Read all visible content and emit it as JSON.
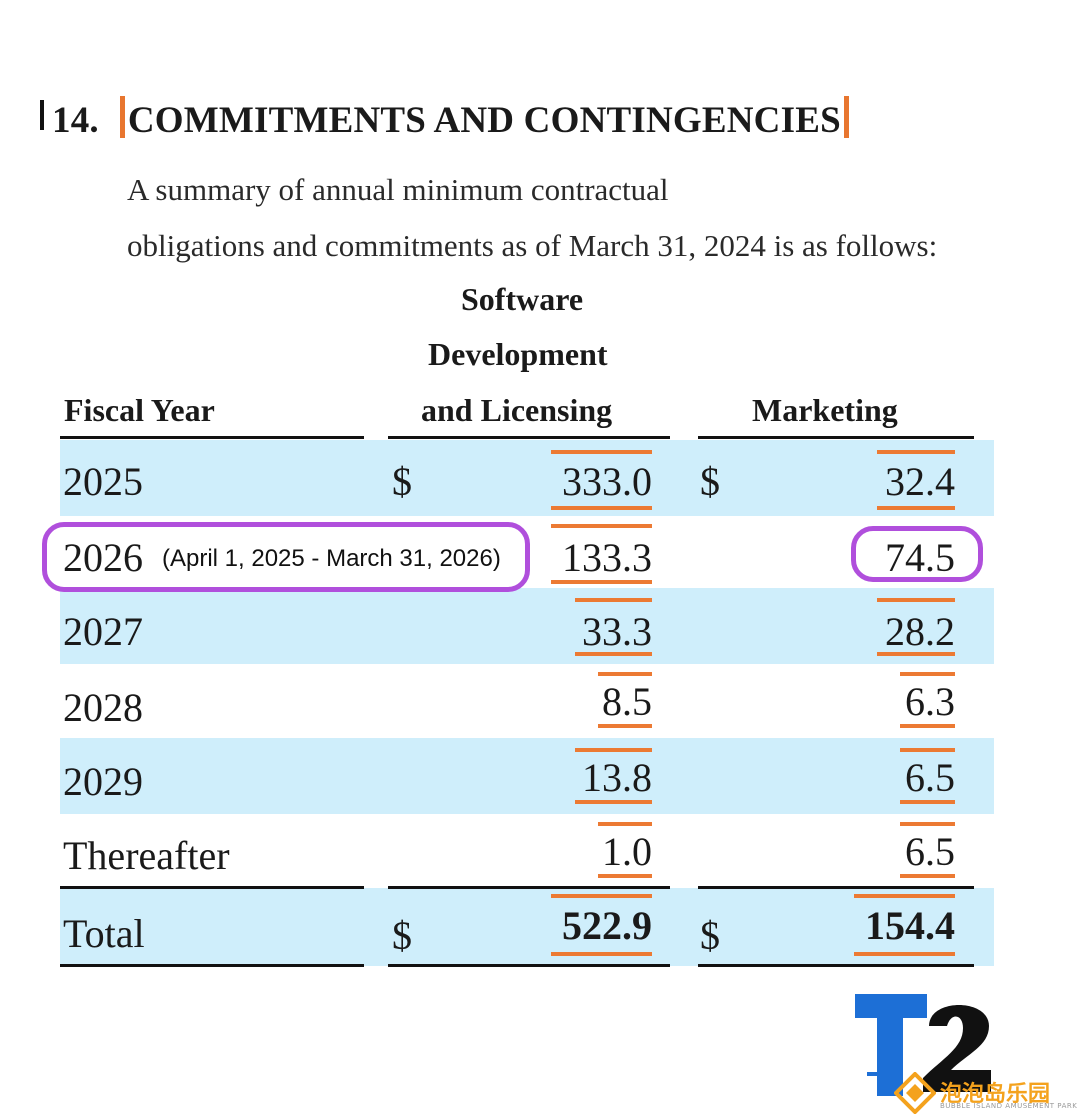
{
  "section": {
    "number": "14.",
    "title": "COMMITMENTS AND CONTINGENCIES",
    "intro_line1": "A summary of annual minimum contractual",
    "intro_line2": "obligations and commitments as of March 31, 2024 is as follows:"
  },
  "table": {
    "headers": {
      "fiscal_year": "Fiscal Year",
      "software_line1": "Software",
      "software_line2": "Development",
      "software_line3": "and Licensing",
      "marketing": "Marketing"
    },
    "currency": "$",
    "rows": [
      {
        "year": "2025",
        "software": "333.0",
        "marketing": "32.4"
      },
      {
        "year": "2026",
        "software": "133.3",
        "marketing": "74.5"
      },
      {
        "year": "2027",
        "software": "33.3",
        "marketing": "28.2"
      },
      {
        "year": "2028",
        "software": "8.5",
        "marketing": "6.3"
      },
      {
        "year": "2029",
        "software": "13.8",
        "marketing": "6.5"
      },
      {
        "year": "Thereafter",
        "software": "1.0",
        "marketing": "6.5"
      }
    ],
    "total": {
      "label": "Total",
      "software": "522.9",
      "marketing": "154.4"
    }
  },
  "annotation": {
    "note": "(April 1, 2025 - March 31, 2026)"
  },
  "watermark": {
    "logo_text": "T2",
    "brand_cn": "泡泡岛乐园",
    "brand_en": "BUBBLE ISLAND AMUSEMENT PARK"
  },
  "colors": {
    "band": "#cfeefb",
    "underline": "#ec7a33",
    "callout": "#b04fdc",
    "logo": "#1d6fd6"
  }
}
